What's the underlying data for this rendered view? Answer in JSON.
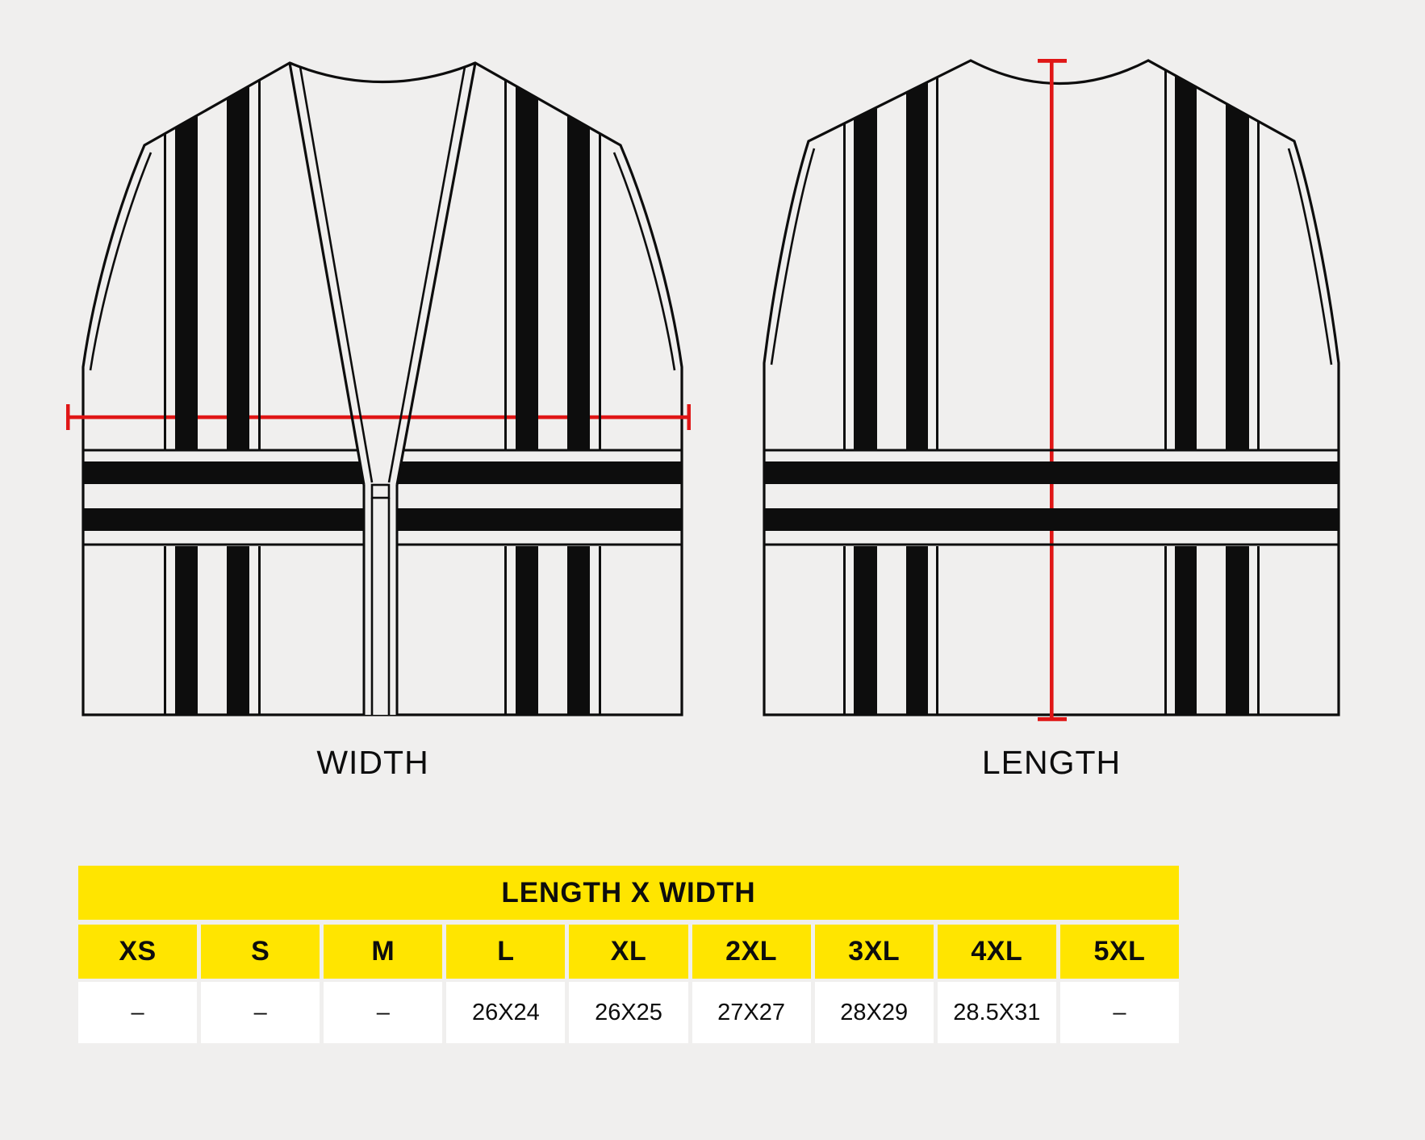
{
  "diagram": {
    "front_label": "WIDTH",
    "back_label": "LENGTH",
    "outline_color": "#0d0d0d",
    "measure_line_color": "#e01616",
    "background_color": "#f0efee"
  },
  "table": {
    "title": "LENGTH X WIDTH",
    "header_bg": "#ffe500",
    "sizes": [
      "XS",
      "S",
      "M",
      "L",
      "XL",
      "2XL",
      "3XL",
      "4XL",
      "5XL"
    ],
    "values": [
      "–",
      "–",
      "–",
      "26X24",
      "26X25",
      "27X27",
      "28X29",
      "28.5X31",
      "–"
    ]
  }
}
